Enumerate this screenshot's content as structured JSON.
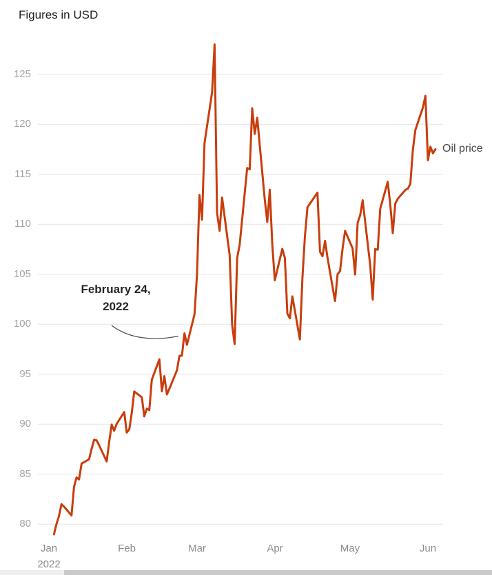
{
  "header": {
    "title": "Figures in USD"
  },
  "chart_data": {
    "type": "line",
    "title": "Figures in USD",
    "x_axis": {
      "tick_labels": [
        "Jan",
        "Feb",
        "Mar",
        "Apr",
        "May",
        "Jun"
      ],
      "year_label": "2022"
    },
    "y_axis": {
      "ticks": [
        125,
        120,
        115,
        110,
        105,
        100,
        95,
        90,
        85,
        80
      ],
      "range": [
        78,
        128.5
      ]
    },
    "grid": true,
    "legend_position": "right-inline",
    "annotation": {
      "text_line1": "February 24,",
      "text_line2": "2022",
      "target_date": "02-24",
      "target_value": 99.08
    },
    "colors": {
      "line": "#c83d0c",
      "grid": "#e4e4e4",
      "pointer": "#4a4a4a",
      "y_label": "#a3a3a3",
      "x_label": "#8b8b8b",
      "title": "#202124",
      "annotation": "#262626",
      "series_label": "#474747",
      "scrollbar_thumb": "#c9c9c9",
      "scrollbar_track": "#efefef"
    },
    "series": [
      {
        "name": "Oil price",
        "color": "#c83d0c",
        "points": [
          {
            "d": "01-03",
            "v": 78.98
          },
          {
            "d": "01-04",
            "v": 80.0
          },
          {
            "d": "01-05",
            "v": 80.8
          },
          {
            "d": "01-06",
            "v": 81.99
          },
          {
            "d": "01-07",
            "v": 81.75
          },
          {
            "d": "01-10",
            "v": 80.87
          },
          {
            "d": "01-11",
            "v": 83.72
          },
          {
            "d": "01-12",
            "v": 84.67
          },
          {
            "d": "01-13",
            "v": 84.47
          },
          {
            "d": "01-14",
            "v": 86.06
          },
          {
            "d": "01-17",
            "v": 86.48
          },
          {
            "d": "01-18",
            "v": 87.51
          },
          {
            "d": "01-19",
            "v": 88.44
          },
          {
            "d": "01-20",
            "v": 88.38
          },
          {
            "d": "01-21",
            "v": 87.89
          },
          {
            "d": "01-24",
            "v": 86.27
          },
          {
            "d": "01-25",
            "v": 88.2
          },
          {
            "d": "01-26",
            "v": 89.96
          },
          {
            "d": "01-27",
            "v": 89.34
          },
          {
            "d": "01-28",
            "v": 90.03
          },
          {
            "d": "01-31",
            "v": 91.21
          },
          {
            "d": "02-01",
            "v": 89.16
          },
          {
            "d": "02-02",
            "v": 89.47
          },
          {
            "d": "02-03",
            "v": 91.11
          },
          {
            "d": "02-04",
            "v": 93.27
          },
          {
            "d": "02-07",
            "v": 92.69
          },
          {
            "d": "02-08",
            "v": 90.78
          },
          {
            "d": "02-09",
            "v": 91.55
          },
          {
            "d": "02-10",
            "v": 91.41
          },
          {
            "d": "02-11",
            "v": 94.44
          },
          {
            "d": "02-14",
            "v": 96.48
          },
          {
            "d": "02-15",
            "v": 93.28
          },
          {
            "d": "02-16",
            "v": 94.81
          },
          {
            "d": "02-17",
            "v": 92.97
          },
          {
            "d": "02-18",
            "v": 93.54
          },
          {
            "d": "02-21",
            "v": 95.39
          },
          {
            "d": "02-22",
            "v": 96.84
          },
          {
            "d": "02-23",
            "v": 96.84
          },
          {
            "d": "02-24",
            "v": 99.08
          },
          {
            "d": "02-25",
            "v": 97.93
          },
          {
            "d": "02-28",
            "v": 100.99
          },
          {
            "d": "03-01",
            "v": 104.97
          },
          {
            "d": "03-02",
            "v": 112.93
          },
          {
            "d": "03-03",
            "v": 110.46
          },
          {
            "d": "03-04",
            "v": 118.11
          },
          {
            "d": "03-07",
            "v": 123.21
          },
          {
            "d": "03-08",
            "v": 127.98
          },
          {
            "d": "03-09",
            "v": 111.14
          },
          {
            "d": "03-10",
            "v": 109.33
          },
          {
            "d": "03-11",
            "v": 112.67
          },
          {
            "d": "03-14",
            "v": 106.9
          },
          {
            "d": "03-15",
            "v": 99.91
          },
          {
            "d": "03-16",
            "v": 98.02
          },
          {
            "d": "03-17",
            "v": 106.64
          },
          {
            "d": "03-18",
            "v": 107.93
          },
          {
            "d": "03-21",
            "v": 115.62
          },
          {
            "d": "03-22",
            "v": 115.48
          },
          {
            "d": "03-23",
            "v": 121.6
          },
          {
            "d": "03-24",
            "v": 119.03
          },
          {
            "d": "03-25",
            "v": 120.65
          },
          {
            "d": "03-28",
            "v": 112.48
          },
          {
            "d": "03-29",
            "v": 110.23
          },
          {
            "d": "03-30",
            "v": 113.45
          },
          {
            "d": "03-31",
            "v": 107.91
          },
          {
            "d": "04-01",
            "v": 104.39
          },
          {
            "d": "04-04",
            "v": 107.53
          },
          {
            "d": "04-05",
            "v": 106.64
          },
          {
            "d": "04-06",
            "v": 101.07
          },
          {
            "d": "04-07",
            "v": 100.58
          },
          {
            "d": "04-08",
            "v": 102.78
          },
          {
            "d": "04-11",
            "v": 98.48
          },
          {
            "d": "04-12",
            "v": 104.64
          },
          {
            "d": "04-13",
            "v": 108.78
          },
          {
            "d": "04-14",
            "v": 111.7
          },
          {
            "d": "04-18",
            "v": 113.16
          },
          {
            "d": "04-19",
            "v": 107.25
          },
          {
            "d": "04-20",
            "v": 106.8
          },
          {
            "d": "04-21",
            "v": 108.33
          },
          {
            "d": "04-22",
            "v": 106.65
          },
          {
            "d": "04-25",
            "v": 102.32
          },
          {
            "d": "04-26",
            "v": 104.99
          },
          {
            "d": "04-27",
            "v": 105.32
          },
          {
            "d": "04-28",
            "v": 107.59
          },
          {
            "d": "04-29",
            "v": 109.34
          },
          {
            "d": "05-02",
            "v": 107.58
          },
          {
            "d": "05-03",
            "v": 104.97
          },
          {
            "d": "05-04",
            "v": 110.14
          },
          {
            "d": "05-05",
            "v": 110.9
          },
          {
            "d": "05-06",
            "v": 112.39
          },
          {
            "d": "05-09",
            "v": 105.94
          },
          {
            "d": "05-10",
            "v": 102.46
          },
          {
            "d": "05-11",
            "v": 107.51
          },
          {
            "d": "05-12",
            "v": 107.45
          },
          {
            "d": "05-13",
            "v": 111.55
          },
          {
            "d": "05-16",
            "v": 114.24
          },
          {
            "d": "05-17",
            "v": 111.93
          },
          {
            "d": "05-18",
            "v": 109.11
          },
          {
            "d": "05-19",
            "v": 112.04
          },
          {
            "d": "05-20",
            "v": 112.55
          },
          {
            "d": "05-23",
            "v": 113.42
          },
          {
            "d": "05-24",
            "v": 113.56
          },
          {
            "d": "05-25",
            "v": 114.03
          },
          {
            "d": "05-26",
            "v": 117.4
          },
          {
            "d": "05-27",
            "v": 119.43
          },
          {
            "d": "05-30",
            "v": 121.67
          },
          {
            "d": "05-31",
            "v": 122.84
          },
          {
            "d": "06-01",
            "v": 116.4
          },
          {
            "d": "06-02",
            "v": 117.75
          },
          {
            "d": "06-03",
            "v": 117.1
          },
          {
            "d": "06-04",
            "v": 117.5
          }
        ]
      }
    ]
  }
}
